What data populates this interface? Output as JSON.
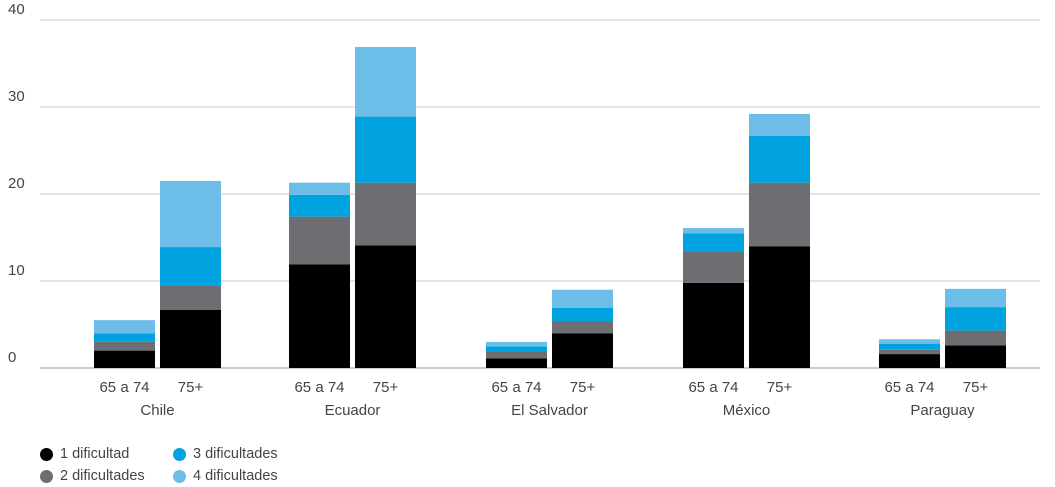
{
  "chart_data": {
    "type": "bar",
    "stacked": true,
    "groups": [
      "Chile",
      "Ecuador",
      "El Salvador",
      "México",
      "Paraguay"
    ],
    "subgroups": [
      "65 a 74",
      "75+"
    ],
    "yticks": [
      0,
      10,
      20,
      30,
      40
    ],
    "ylim": [
      0,
      40
    ],
    "grid": true,
    "legend_position": "bottom-left",
    "series": [
      {
        "name": "1 dificultad",
        "color": "#000000",
        "values": [
          [
            2.0,
            6.7
          ],
          [
            11.9,
            14.1
          ],
          [
            1.1,
            4.0
          ],
          [
            9.8,
            14.0
          ],
          [
            1.6,
            2.6
          ]
        ]
      },
      {
        "name": "2 dificultades",
        "color": "#6d6e71",
        "values": [
          [
            1.0,
            2.8
          ],
          [
            5.5,
            7.2
          ],
          [
            0.8,
            1.4
          ],
          [
            3.6,
            7.3
          ],
          [
            0.5,
            1.7
          ]
        ]
      },
      {
        "name": "3 dificultades",
        "color": "#00a3e0",
        "values": [
          [
            1.0,
            4.4
          ],
          [
            2.5,
            7.6
          ],
          [
            0.6,
            1.5
          ],
          [
            2.1,
            5.4
          ],
          [
            0.7,
            2.7
          ]
        ]
      },
      {
        "name": "4 dificultades",
        "color": "#6cbde8",
        "values": [
          [
            1.5,
            7.6
          ],
          [
            1.4,
            8.0
          ],
          [
            0.5,
            2.1
          ],
          [
            0.6,
            2.5
          ],
          [
            0.5,
            2.1
          ]
        ]
      }
    ]
  }
}
